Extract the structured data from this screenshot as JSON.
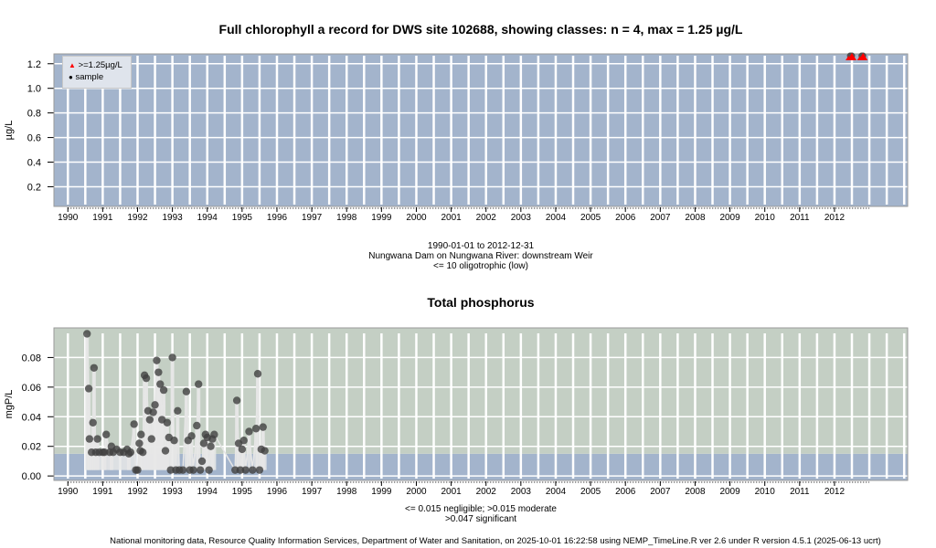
{
  "chart_data": [
    {
      "type": "scatter",
      "title": "Full chlorophyll a record for DWS site 102688, showing classes: n = 4, max = 1.25 µg/L",
      "xlabel": "",
      "ylabel": "µg/L",
      "xlim": [
        1989.6,
        2014.1
      ],
      "ylim": [
        0.04,
        1.28
      ],
      "yticks": [
        "0.2",
        "0.4",
        "0.6",
        "0.8",
        "1.0",
        "1.2"
      ],
      "ytick_values": [
        0.2,
        0.4,
        0.6,
        0.8,
        1.0,
        1.2
      ],
      "xticks": [
        "1990",
        "1991",
        "1992",
        "1993",
        "1994",
        "1995",
        "1996",
        "1997",
        "1998",
        "1999",
        "2000",
        "2001",
        "2002",
        "2003",
        "2004",
        "2005",
        "2006",
        "2007",
        "2008",
        "2009",
        "2010",
        "2011",
        "2012"
      ],
      "grid": true,
      "background": "#a3b4cc",
      "legend": {
        "placement": "top-left",
        "entries": [
          {
            "label": ">=1.25µg/L",
            "marker": "triangle",
            "color": "#ff0000"
          },
          {
            "label": "sample",
            "marker": "circle",
            "color": "#000000"
          }
        ]
      },
      "series": [
        {
          "name": ">=1.25µg/L",
          "color": "#ff0000",
          "marker": "triangle",
          "x": [
            2012.45,
            2012.5,
            2012.78,
            2012.82
          ],
          "y": [
            1.25,
            1.25,
            1.25,
            1.25
          ]
        }
      ],
      "subtitle_lines": [
        "1990-01-01 to 2012-12-31",
        "Nungwana Dam on Nungwana River: downstream Weir",
        "<= 10 oligotrophic (low)"
      ]
    },
    {
      "type": "scatter",
      "title": "Total phosphorus",
      "xlabel": "",
      "ylabel": "mgP/L",
      "xlim": [
        1989.6,
        2014.1
      ],
      "ylim": [
        -0.003,
        0.1
      ],
      "yticks": [
        "0.00",
        "0.02",
        "0.04",
        "0.06",
        "0.08"
      ],
      "ytick_values": [
        0.0,
        0.02,
        0.04,
        0.06,
        0.08
      ],
      "xticks": [
        "1990",
        "1991",
        "1992",
        "1993",
        "1994",
        "1995",
        "1996",
        "1997",
        "1998",
        "1999",
        "2000",
        "2001",
        "2002",
        "2003",
        "2004",
        "2005",
        "2006",
        "2007",
        "2008",
        "2009",
        "2010",
        "2011",
        "2012"
      ],
      "grid": true,
      "bands": [
        {
          "from": -0.003,
          "to": 0.015,
          "color": "#a3b4cc",
          "label": "negligible"
        },
        {
          "from": 0.015,
          "to": 0.1,
          "color": "#c4cfc4",
          "label": "moderate"
        }
      ],
      "series": [
        {
          "name": "sample",
          "color": "#505050",
          "marker": "circle",
          "x": [
            1990.55,
            1990.6,
            1990.62,
            1990.68,
            1990.72,
            1990.75,
            1990.8,
            1990.85,
            1990.9,
            1991.0,
            1991.05,
            1991.1,
            1991.2,
            1991.25,
            1991.3,
            1991.4,
            1991.5,
            1991.6,
            1991.7,
            1991.75,
            1991.8,
            1991.9,
            1991.95,
            1992.0,
            1992.05,
            1992.08,
            1992.1,
            1992.15,
            1992.2,
            1992.25,
            1992.3,
            1992.35,
            1992.4,
            1992.45,
            1992.5,
            1992.55,
            1992.6,
            1992.65,
            1992.7,
            1992.75,
            1992.8,
            1992.85,
            1992.9,
            1992.95,
            1993.0,
            1993.05,
            1993.1,
            1993.15,
            1993.2,
            1993.3,
            1993.4,
            1993.45,
            1993.5,
            1993.55,
            1993.6,
            1993.7,
            1993.75,
            1993.8,
            1993.85,
            1993.9,
            1993.95,
            1994.0,
            1994.05,
            1994.1,
            1994.15,
            1994.2,
            1994.8,
            1994.85,
            1994.9,
            1994.95,
            1995.0,
            1995.05,
            1995.1,
            1995.2,
            1995.3,
            1995.4,
            1995.45,
            1995.5,
            1995.55,
            1995.6,
            1995.65
          ],
          "y": [
            0.096,
            0.059,
            0.025,
            0.016,
            0.036,
            0.073,
            0.016,
            0.025,
            0.016,
            0.016,
            0.016,
            0.028,
            0.016,
            0.02,
            0.016,
            0.018,
            0.016,
            0.016,
            0.018,
            0.015,
            0.016,
            0.035,
            0.004,
            0.004,
            0.022,
            0.017,
            0.028,
            0.016,
            0.068,
            0.066,
            0.044,
            0.038,
            0.025,
            0.043,
            0.048,
            0.078,
            0.07,
            0.062,
            0.038,
            0.058,
            0.017,
            0.036,
            0.026,
            0.004,
            0.08,
            0.024,
            0.004,
            0.044,
            0.004,
            0.004,
            0.057,
            0.024,
            0.004,
            0.027,
            0.004,
            0.034,
            0.062,
            0.004,
            0.01,
            0.022,
            0.028,
            0.026,
            0.004,
            0.02,
            0.025,
            0.028,
            0.004,
            0.051,
            0.022,
            0.004,
            0.018,
            0.024,
            0.004,
            0.03,
            0.004,
            0.032,
            0.069,
            0.004,
            0.018,
            0.033,
            0.017
          ]
        }
      ],
      "subtitle_lines": [
        "<= 0.015 negligible; >0.015 moderate",
        ">0.047 significant"
      ]
    }
  ],
  "footer": "National monitoring data, Resource Quality Information Services, Department of Water and Sanitation, on 2025-10-01 16:22:58 using NEMP_TimeLine.R ver 2.6 under R version 4.5.1 (2025-06-13 ucrt)"
}
